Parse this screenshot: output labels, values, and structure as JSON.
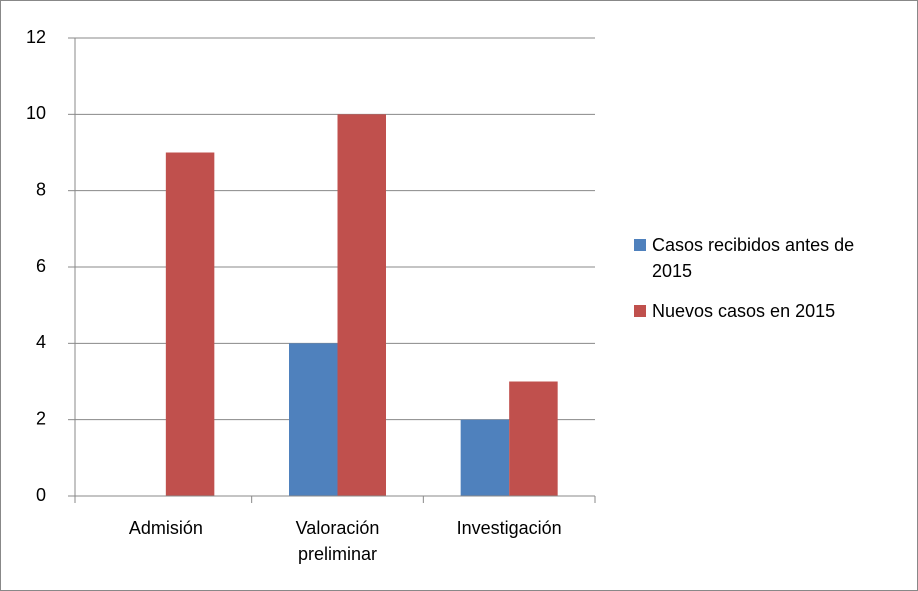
{
  "chart_data": {
    "type": "bar",
    "categories": [
      "Admisión",
      "Valoración preliminar",
      "Investigación"
    ],
    "series": [
      {
        "name": "Casos recibidos antes de 2015",
        "color": "#4f81bd",
        "values": [
          0,
          4,
          2
        ]
      },
      {
        "name": "Nuevos casos en 2015",
        "color": "#c0504d",
        "values": [
          9,
          10,
          3
        ]
      }
    ],
    "ylim": [
      0,
      12
    ],
    "yticks": [
      0,
      2,
      4,
      6,
      8,
      10,
      12
    ],
    "grid": true,
    "legend": "right"
  }
}
